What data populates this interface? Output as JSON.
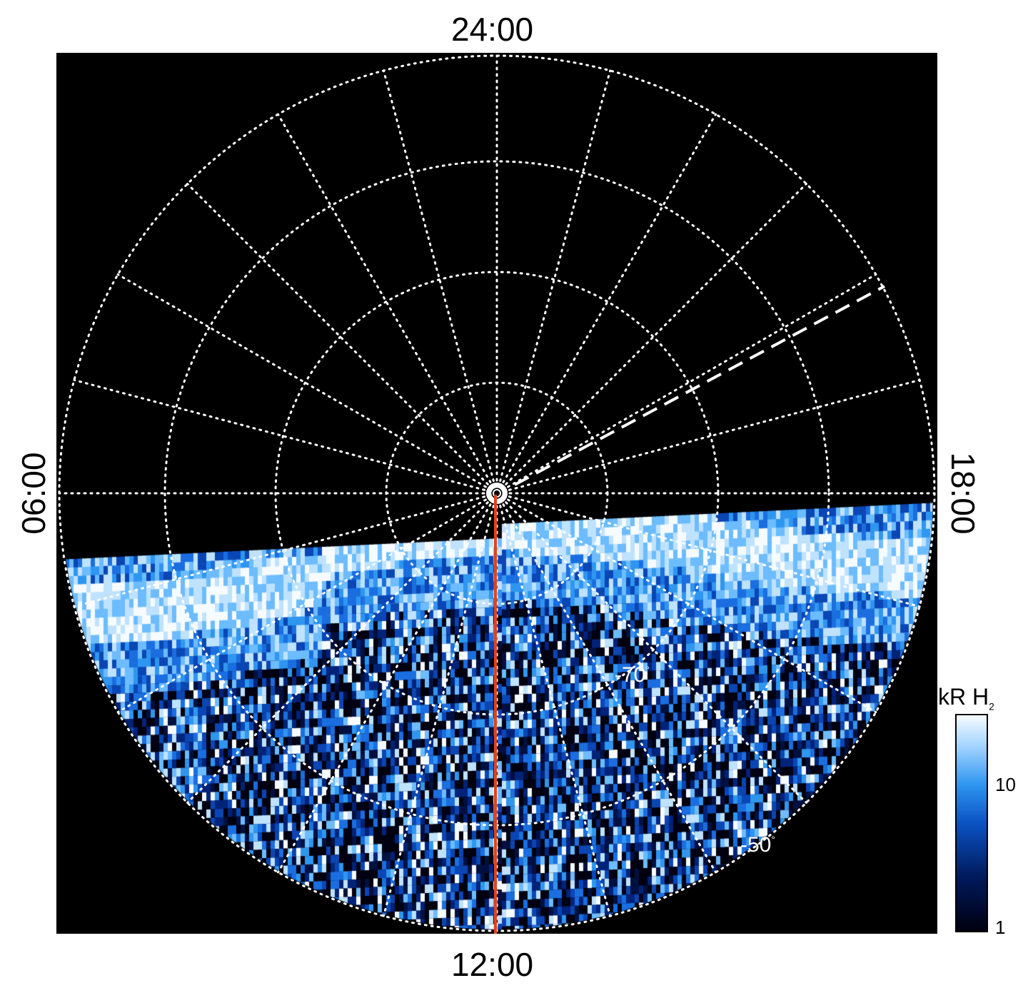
{
  "mlt_labels": {
    "top": "24:00",
    "bottom": "12:00",
    "left": "06:00",
    "right": "18:00"
  },
  "latitude_labels": [
    {
      "text": "-70",
      "deg": "°"
    },
    {
      "text": "-50",
      "deg": "°"
    }
  ],
  "colorbar": {
    "title": "kR H",
    "title_sub": "2",
    "tick_10": "10",
    "tick_1": "1"
  },
  "colors": {
    "background": "#000000",
    "grid": "#ffffff",
    "meridian_line": "#e0431d",
    "aurora_bright": "#f6fbff",
    "aurora_mid": "#2f96f0",
    "aurora_dark": "#001a5c"
  },
  "chart_data": {
    "type": "heatmap",
    "projection": "polar",
    "grid": true,
    "colorbar_scale": "log",
    "colorbar_range": [
      1,
      30
    ]
  }
}
